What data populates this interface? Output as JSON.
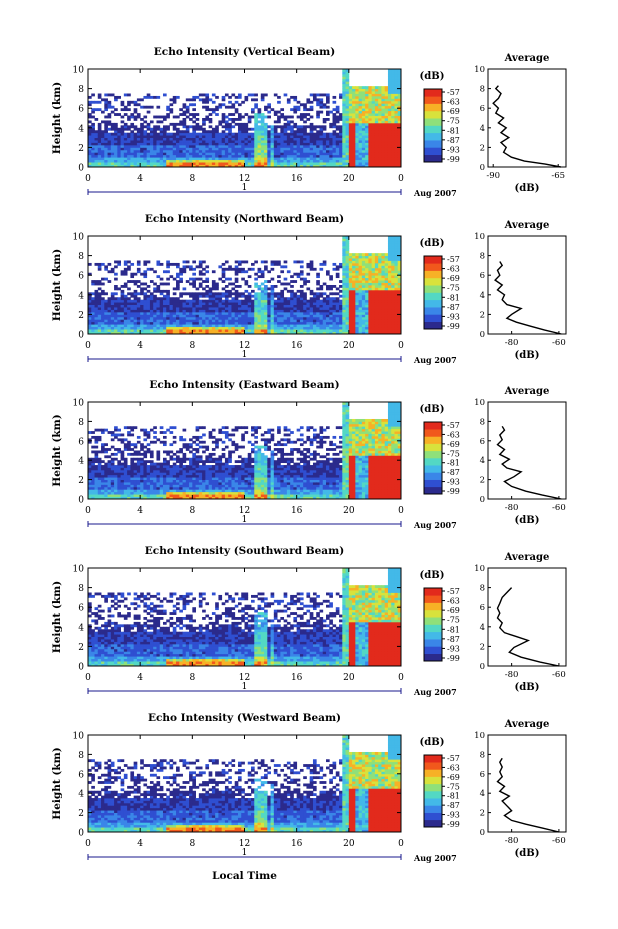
{
  "colors": {
    "scale": [
      "#2b2a8c",
      "#2f4fd1",
      "#3a86e8",
      "#43b9e8",
      "#53d8c4",
      "#8fe07a",
      "#d8e23c",
      "#f7b126",
      "#f1581c",
      "#e22a1c"
    ]
  },
  "x_axis": {
    "title": "Local Time",
    "ticks": [
      "0",
      "4",
      "8",
      "12",
      "16",
      "20",
      "0"
    ],
    "day_label": "1",
    "month_label": "Aug 2007"
  },
  "chart_data": [
    {
      "type": "heatmap",
      "title": "Echo Intensity (Vertical Beam)",
      "ylabel": "Height (km)",
      "ylim": [
        0,
        10
      ],
      "xlim": [
        0,
        24
      ],
      "yticks": [
        "0",
        "2",
        "4",
        "6",
        "8",
        "10"
      ],
      "colorbar": {
        "unit": "(dB)",
        "ticks": [
          "-57",
          "-63",
          "-69",
          "-75",
          "-81",
          "-87",
          "-93",
          "-99"
        ]
      },
      "average": {
        "title": "Average",
        "xlabel": "(dB)",
        "xticks": [
          "-90",
          "-65"
        ],
        "xlim": [
          -92,
          -62
        ],
        "profile": [
          [
            -64,
            0.0
          ],
          [
            -70,
            0.3
          ],
          [
            -78,
            0.6
          ],
          [
            -83,
            1.0
          ],
          [
            -86,
            1.5
          ],
          [
            -85,
            2.0
          ],
          [
            -87,
            2.5
          ],
          [
            -84,
            3.0
          ],
          [
            -87,
            3.5
          ],
          [
            -85,
            4.0
          ],
          [
            -88,
            4.5
          ],
          [
            -86,
            5.0
          ],
          [
            -89,
            5.5
          ],
          [
            -88,
            6.0
          ],
          [
            -90,
            6.5
          ],
          [
            -88,
            7.0
          ],
          [
            -87,
            7.5
          ],
          [
            -89,
            8.0
          ],
          [
            -88,
            8.3
          ]
        ]
      }
    },
    {
      "type": "heatmap",
      "title": "Echo Intensity (Northward Beam)",
      "ylabel": "Height (km)",
      "ylim": [
        0,
        10
      ],
      "xlim": [
        0,
        24
      ],
      "yticks": [
        "0",
        "2",
        "4",
        "6",
        "8",
        "10"
      ],
      "colorbar": {
        "unit": "(dB)",
        "ticks": [
          "-57",
          "-63",
          "-69",
          "-75",
          "-81",
          "-87",
          "-93",
          "-99"
        ]
      },
      "average": {
        "title": "Average",
        "xlabel": "(dB)",
        "xticks": [
          "-80",
          "-60"
        ],
        "xlim": [
          -90,
          -57
        ],
        "profile": [
          [
            -59,
            0.0
          ],
          [
            -66,
            0.4
          ],
          [
            -72,
            0.8
          ],
          [
            -78,
            1.2
          ],
          [
            -82,
            1.6
          ],
          [
            -80,
            2.0
          ],
          [
            -76,
            2.6
          ],
          [
            -82,
            3.0
          ],
          [
            -84,
            3.5
          ],
          [
            -83,
            4.0
          ],
          [
            -86,
            4.5
          ],
          [
            -84,
            5.0
          ],
          [
            -87,
            5.5
          ],
          [
            -85,
            6.0
          ],
          [
            -86,
            6.5
          ],
          [
            -84,
            7.0
          ],
          [
            -85,
            7.4
          ]
        ]
      }
    },
    {
      "type": "heatmap",
      "title": "Echo Intensity (Eastward Beam)",
      "ylabel": "Height (km)",
      "ylim": [
        0,
        10
      ],
      "xlim": [
        0,
        24
      ],
      "yticks": [
        "0",
        "2",
        "4",
        "6",
        "8",
        "10"
      ],
      "colorbar": {
        "unit": "(dB)",
        "ticks": [
          "-57",
          "-63",
          "-69",
          "-75",
          "-81",
          "-87",
          "-93",
          "-99"
        ]
      },
      "average": {
        "title": "Average",
        "xlabel": "(dB)",
        "xticks": [
          "-80",
          "-60"
        ],
        "xlim": [
          -90,
          -57
        ],
        "profile": [
          [
            -59,
            0.0
          ],
          [
            -67,
            0.4
          ],
          [
            -74,
            0.8
          ],
          [
            -80,
            1.3
          ],
          [
            -83,
            1.8
          ],
          [
            -79,
            2.3
          ],
          [
            -76,
            2.8
          ],
          [
            -82,
            3.2
          ],
          [
            -84,
            3.6
          ],
          [
            -81,
            4.1
          ],
          [
            -85,
            4.6
          ],
          [
            -83,
            5.1
          ],
          [
            -86,
            5.6
          ],
          [
            -84,
            6.1
          ],
          [
            -85,
            6.6
          ],
          [
            -83,
            7.1
          ],
          [
            -84,
            7.5
          ]
        ]
      }
    },
    {
      "type": "heatmap",
      "title": "Echo Intensity (Southward Beam)",
      "ylabel": "Height (km)",
      "ylim": [
        0,
        10
      ],
      "xlim": [
        0,
        24
      ],
      "yticks": [
        "0",
        "2",
        "4",
        "6",
        "8",
        "10"
      ],
      "colorbar": {
        "unit": "(dB)",
        "ticks": [
          "-57",
          "-63",
          "-69",
          "-75",
          "-81",
          "-87",
          "-93",
          "-99"
        ]
      },
      "average": {
        "title": "Average",
        "xlabel": "(dB)",
        "xticks": [
          "-80",
          "-60"
        ],
        "xlim": [
          -90,
          -57
        ],
        "profile": [
          [
            -60,
            0.0
          ],
          [
            -68,
            0.4
          ],
          [
            -76,
            0.9
          ],
          [
            -81,
            1.4
          ],
          [
            -79,
            1.9
          ],
          [
            -73,
            2.6
          ],
          [
            -78,
            3.0
          ],
          [
            -83,
            3.4
          ],
          [
            -85,
            3.9
          ],
          [
            -84,
            4.4
          ],
          [
            -86,
            4.9
          ],
          [
            -85,
            5.4
          ],
          [
            -86,
            5.9
          ],
          [
            -85,
            6.4
          ],
          [
            -84,
            7.0
          ],
          [
            -82,
            7.5
          ],
          [
            -80,
            8.0
          ]
        ]
      }
    },
    {
      "type": "heatmap",
      "title": "Echo Intensity (Westward Beam)",
      "ylabel": "Height (km)",
      "ylim": [
        0,
        10
      ],
      "xlim": [
        0,
        24
      ],
      "yticks": [
        "0",
        "2",
        "4",
        "6",
        "8",
        "10"
      ],
      "colorbar": {
        "unit": "(dB)",
        "ticks": [
          "-57",
          "-63",
          "-69",
          "-75",
          "-81",
          "-87",
          "-93",
          "-99"
        ]
      },
      "average": {
        "title": "Average",
        "xlabel": "(dB)",
        "xticks": [
          "-80",
          "-60"
        ],
        "xlim": [
          -90,
          -57
        ],
        "profile": [
          [
            -60,
            0.0
          ],
          [
            -67,
            0.4
          ],
          [
            -74,
            0.8
          ],
          [
            -80,
            1.2
          ],
          [
            -83,
            1.7
          ],
          [
            -80,
            2.2
          ],
          [
            -82,
            2.7
          ],
          [
            -84,
            3.2
          ],
          [
            -81,
            3.7
          ],
          [
            -85,
            4.2
          ],
          [
            -83,
            4.7
          ],
          [
            -86,
            5.2
          ],
          [
            -84,
            5.7
          ],
          [
            -85,
            6.2
          ],
          [
            -84,
            6.7
          ],
          [
            -85,
            7.2
          ],
          [
            -84,
            7.6
          ]
        ]
      }
    }
  ]
}
